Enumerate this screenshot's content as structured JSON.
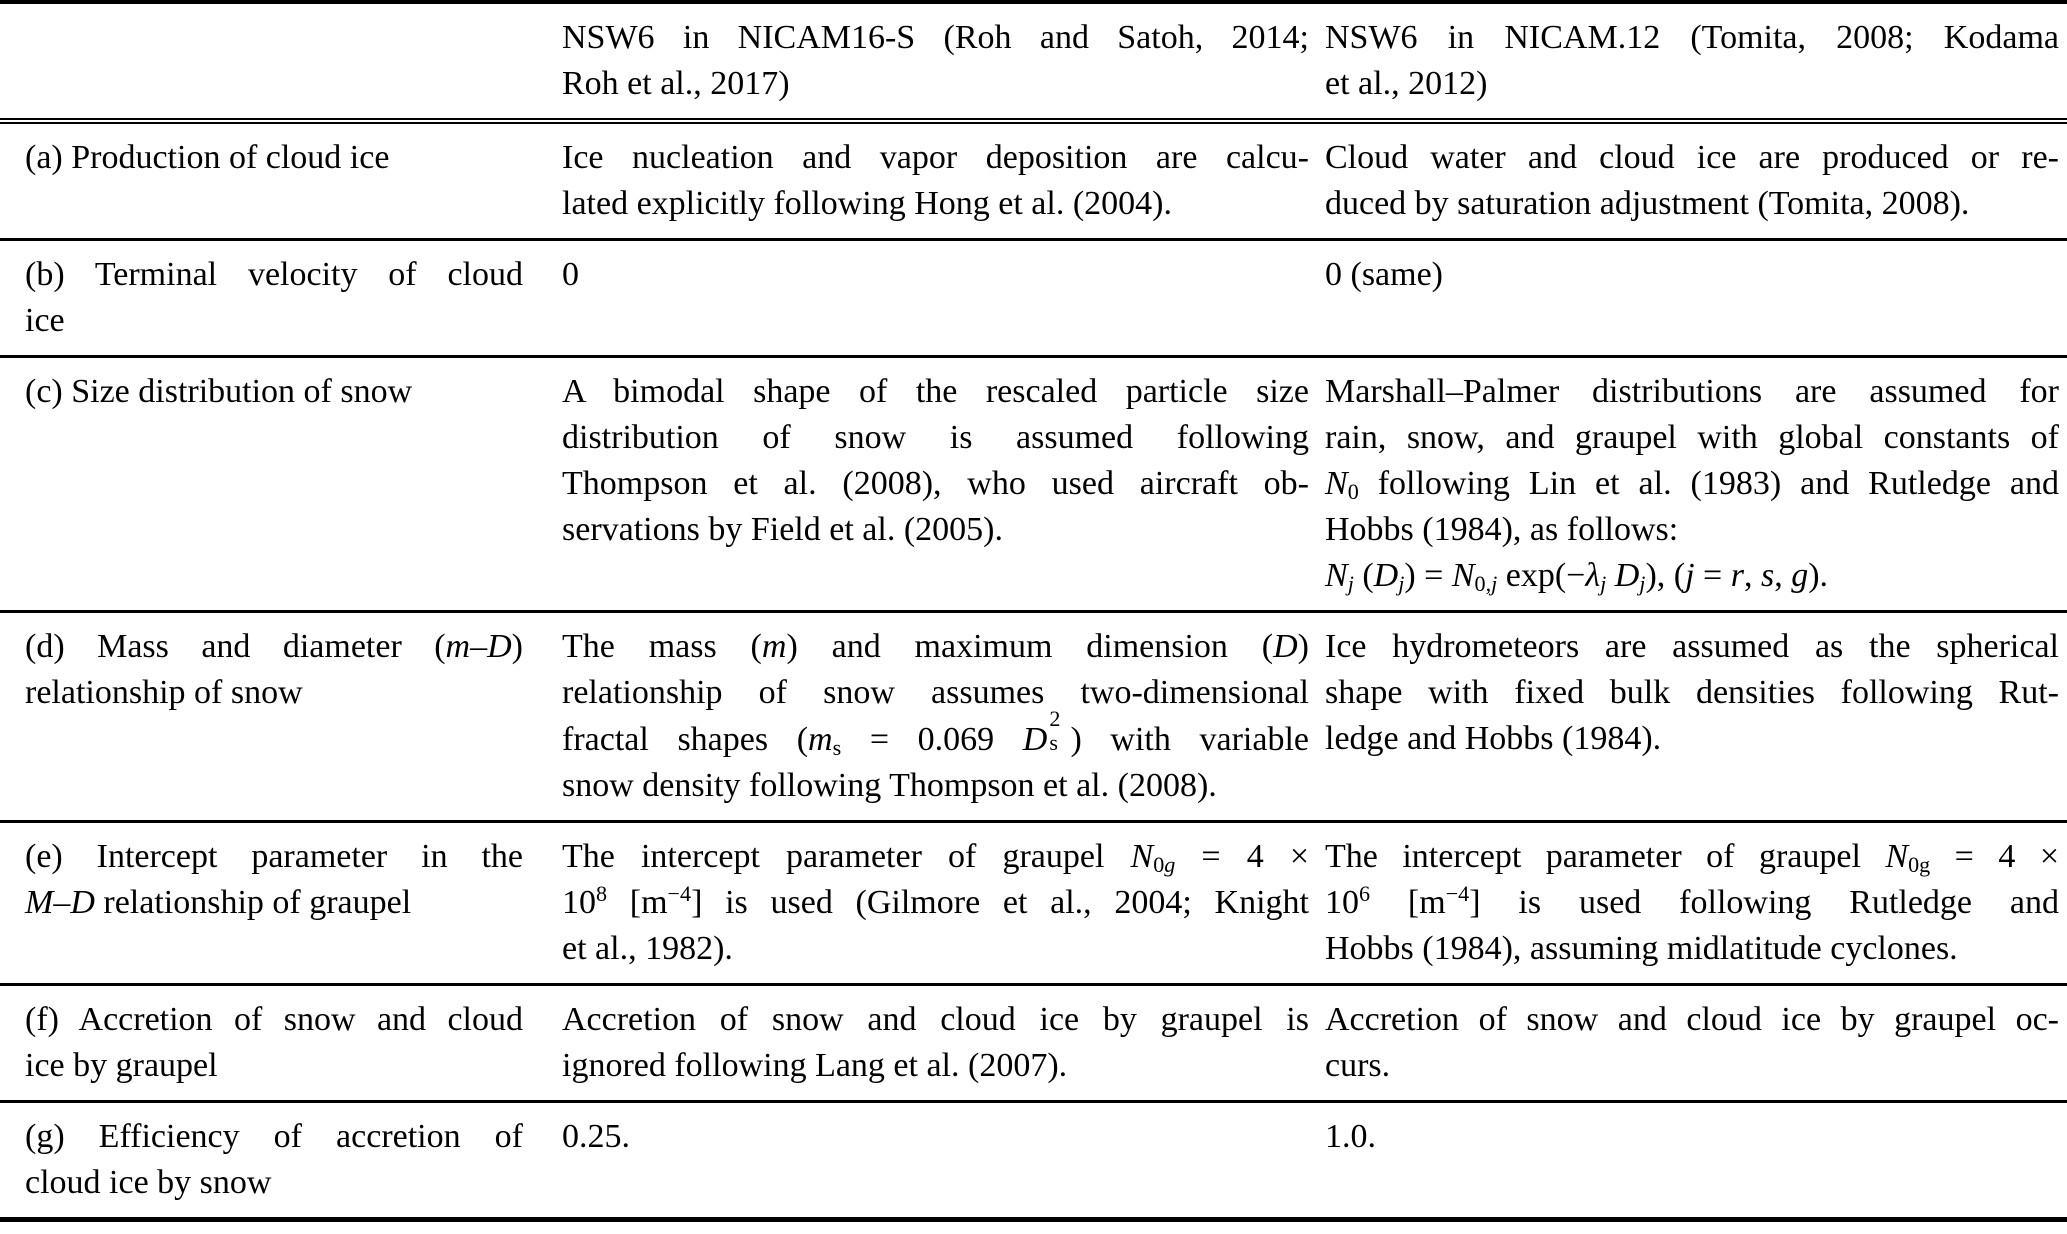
{
  "colors": {
    "background": "#ffffff",
    "text": "#000000",
    "rule": "#000000"
  },
  "table": {
    "header": {
      "corner_lines": [],
      "nicam16s_lines": [
        "NSW6 in NICAM16-S (Roh and Satoh, 2014;",
        "Roh et al., 2017)"
      ],
      "nicam12_lines": [
        "NSW6 in NICAM.12 (Tomita, 2008; Kodama",
        "et al., 2012)"
      ]
    },
    "rows": [
      {
        "id": "a",
        "label_lines": [
          "(a) Production of cloud ice"
        ],
        "nicam16s_lines": [
          "Ice nucleation and vapor deposition are calcu-",
          "lated explicitly following Hong et al. (2004)."
        ],
        "nicam12_lines": [
          "Cloud water and cloud ice are produced or re-",
          "duced by saturation adjustment (Tomita, 2008)."
        ]
      },
      {
        "id": "b",
        "label_lines": [
          "(b) Terminal velocity of cloud",
          "ice"
        ],
        "nicam16s_lines": [
          "0"
        ],
        "nicam12_lines": [
          "0 (same)"
        ]
      },
      {
        "id": "c",
        "label_lines": [
          "(c) Size distribution of snow"
        ],
        "nicam16s_lines": [
          "A bimodal shape of the rescaled particle size",
          "distribution of snow is assumed following",
          "Thompson et al. (2008), who used aircraft ob-",
          "servations by Field et al. (2005)."
        ],
        "nicam12_lines": [
          "Marshall–Palmer distributions are assumed for",
          "rain, snow, and graupel with global constants of",
          "<i>N</i><sub>0</sub> following Lin et al. (1983) and Rutledge and",
          "Hobbs (1984), as follows:",
          "<i>N<sub>j</sub></i> (<i>D<sub>j</sub></i>) = <i>N</i><sub>0,<i>j</i></sub> exp(−<i>λ<sub>j</sub></i> <i>D<sub>j</sub></i>), (<i>j</i> = <i>r</i>, <i>s</i>, <i>g</i>)."
        ]
      },
      {
        "id": "d",
        "label_lines": [
          "(d) Mass and diameter (<i>m</i>–<i>D</i>)",
          "relationship of snow"
        ],
        "nicam16s_lines": [
          "The mass (<i>m</i>) and maximum dimension (<i>D</i>)",
          "relationship of snow assumes two-dimensional",
          "fractal shapes (<i>m</i><sub>s</sub> = 0.069 <i>D</i><span class='ss'><span class='t'>2</span><span class='b'>s</span></span>) with variable",
          "snow density following Thompson et al. (2008)."
        ],
        "nicam12_lines": [
          "Ice hydrometeors are assumed as the spherical",
          "shape with fixed bulk densities following Rut-",
          "ledge and Hobbs (1984)."
        ]
      },
      {
        "id": "e",
        "label_lines": [
          "(e) Intercept parameter in the",
          "<i>M</i>–<i>D</i> relationship of graupel"
        ],
        "nicam16s_lines": [
          "The intercept parameter of graupel <i>N</i><sub>0<i>g</i></sub> = 4 ×",
          "10<sup>8</sup> [m<sup>−4</sup>] is used (Gilmore et al., 2004; Knight",
          "et al., 1982)."
        ],
        "nicam12_lines": [
          "The intercept parameter of graupel <i>N</i><sub>0g</sub> = 4 ×",
          "10<sup>6</sup> [m<sup>−4</sup>] is used following Rutledge and",
          "Hobbs (1984), assuming midlatitude cyclones."
        ]
      },
      {
        "id": "f",
        "label_lines": [
          "(f) Accretion of snow and cloud",
          "ice by graupel"
        ],
        "nicam16s_lines": [
          "Accretion of snow and cloud ice by graupel is",
          "ignored following Lang et al. (2007)."
        ],
        "nicam12_lines": [
          "Accretion of snow and cloud ice by graupel oc-",
          "curs."
        ]
      },
      {
        "id": "g",
        "label_lines": [
          "(g) Efficiency of accretion of",
          "cloud ice by snow"
        ],
        "nicam16s_lines": [
          "0.25."
        ],
        "nicam12_lines": [
          "1.0."
        ]
      }
    ]
  }
}
